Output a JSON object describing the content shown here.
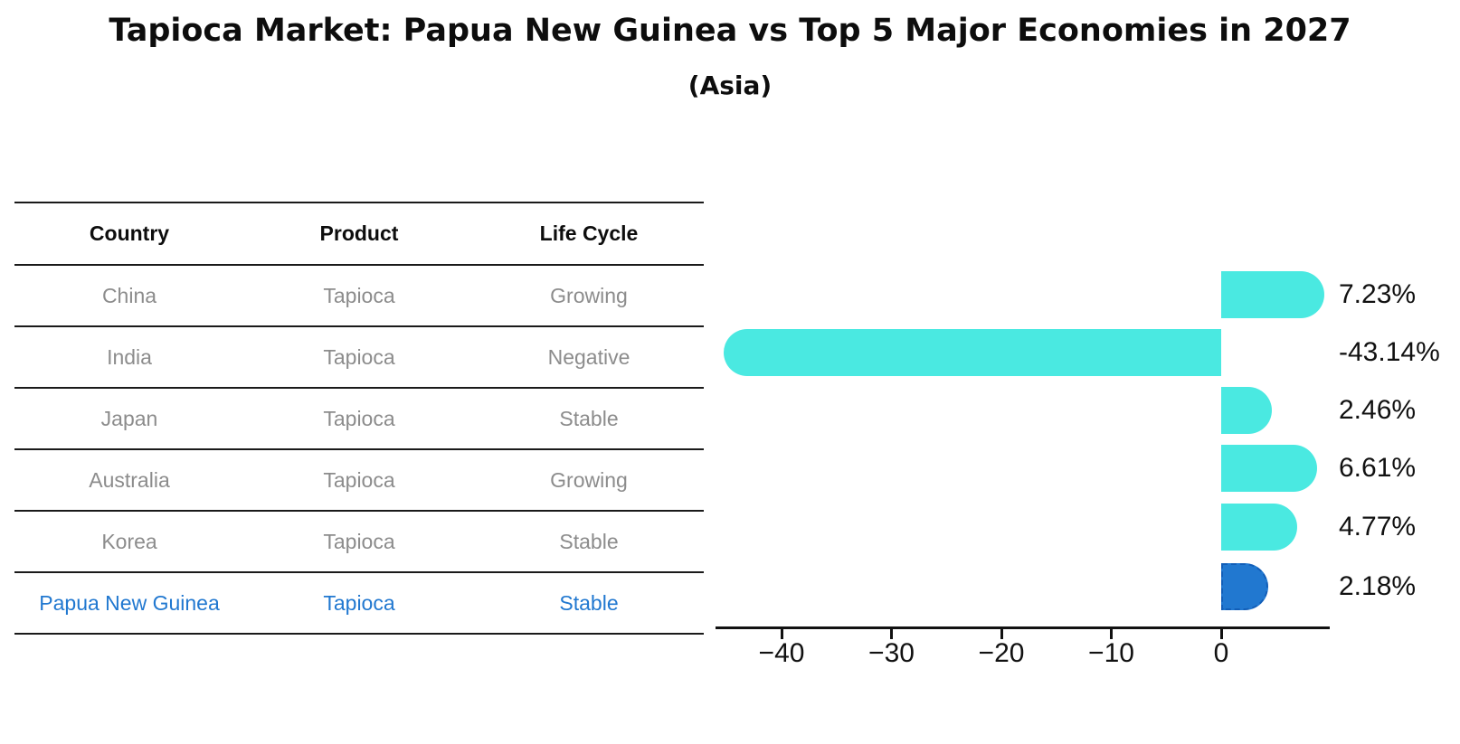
{
  "header": {
    "title": "Tapioca Market: Papua New Guinea vs Top 5 Major Economies in 2027",
    "subtitle": "(Asia)"
  },
  "colors": {
    "bar_default": "#4AE9E1",
    "bar_highlight": "#2178D0",
    "highlight_text": "#2178D0",
    "table_text": "#8C8C8C",
    "axis": "#111111"
  },
  "table": {
    "headers": [
      "Country",
      "Product",
      "Life Cycle"
    ],
    "rows": [
      {
        "country": "China",
        "product": "Tapioca",
        "life_cycle": "Growing",
        "highlight": false
      },
      {
        "country": "India",
        "product": "Tapioca",
        "life_cycle": "Negative",
        "highlight": false
      },
      {
        "country": "Japan",
        "product": "Tapioca",
        "life_cycle": "Stable",
        "highlight": false
      },
      {
        "country": "Australia",
        "product": "Tapioca",
        "life_cycle": "Growing",
        "highlight": false
      },
      {
        "country": "Korea",
        "product": "Tapioca",
        "life_cycle": "Stable",
        "highlight": false
      },
      {
        "country": "Papua New Guinea",
        "product": "Tapioca",
        "life_cycle": "Stable",
        "highlight": true
      }
    ]
  },
  "chart_data": {
    "type": "bar",
    "orientation": "horizontal",
    "title": "Tapioca Market: Papua New Guinea vs Top 5 Major Economies in 2027 (Asia)",
    "xlabel": "",
    "ylabel": "",
    "categories": [
      "China",
      "India",
      "Japan",
      "Australia",
      "Korea",
      "Papua New Guinea"
    ],
    "values": [
      7.23,
      -43.14,
      2.46,
      6.61,
      4.77,
      2.18
    ],
    "value_labels": [
      "7.23%",
      "-43.14%",
      "2.46%",
      "6.61%",
      "4.77%",
      "2.18%"
    ],
    "highlight_index": 5,
    "x_ticks": [
      -40,
      -30,
      -20,
      -10,
      0
    ],
    "tick_labels": [
      "−40",
      "−30",
      "−20",
      "−10",
      "0"
    ],
    "xlim": [
      -46,
      10
    ],
    "grid": false,
    "legend": null
  }
}
